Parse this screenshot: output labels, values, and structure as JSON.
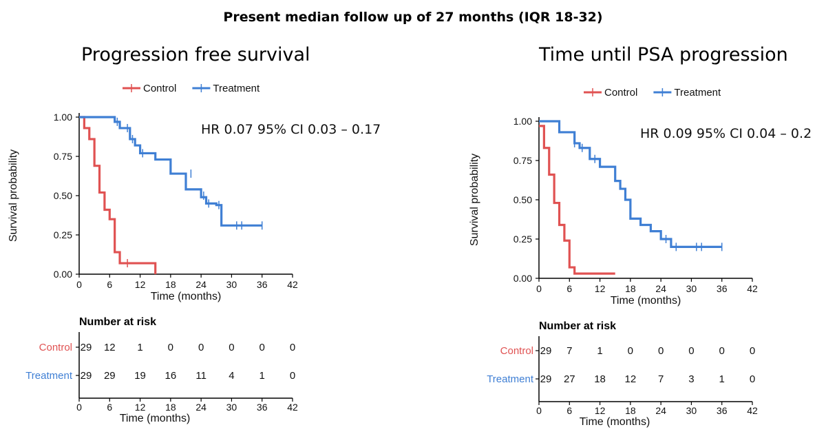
{
  "page_title": "Present median follow up of 27 months (IQR 18-32)",
  "colors": {
    "control": "#e05252",
    "treatment": "#3f7fd4",
    "axis": "#000000"
  },
  "chart_data": [
    {
      "type": "line",
      "title": "Progression free survival",
      "legend": [
        "Control",
        "Treatment"
      ],
      "legend_position": "top",
      "annotation": "HR 0.07 95% CI 0.03 – 0.17",
      "xlabel": "Time (months)",
      "ylabel": "Survival probability",
      "xlim": [
        0,
        42
      ],
      "ylim": [
        0,
        1
      ],
      "x_ticks": [
        "0",
        "6",
        "12",
        "18",
        "24",
        "30",
        "36",
        "42"
      ],
      "y_ticks": [
        "0.00",
        "0.25",
        "0.50",
        "0.75",
        "1.00"
      ],
      "series": [
        {
          "name": "Control",
          "steps": [
            [
              0,
              1.0
            ],
            [
              1,
              0.93
            ],
            [
              2,
              0.86
            ],
            [
              3,
              0.69
            ],
            [
              4,
              0.52
            ],
            [
              5,
              0.41
            ],
            [
              6,
              0.35
            ],
            [
              7,
              0.14
            ],
            [
              8,
              0.07
            ],
            [
              15,
              0.0
            ]
          ],
          "censored": [
            [
              9.5,
              0.07
            ]
          ]
        },
        {
          "name": "Treatment",
          "steps": [
            [
              0,
              1.0
            ],
            [
              7,
              0.97
            ],
            [
              8,
              0.93
            ],
            [
              10,
              0.86
            ],
            [
              11,
              0.82
            ],
            [
              12,
              0.77
            ],
            [
              15,
              0.73
            ],
            [
              18,
              0.64
            ],
            [
              21,
              0.54
            ],
            [
              24,
              0.49
            ],
            [
              25,
              0.45
            ],
            [
              27,
              0.44
            ],
            [
              28,
              0.31
            ]
          ],
          "end": 36,
          "censored": [
            [
              7.5,
              0.97
            ],
            [
              9.5,
              0.93
            ],
            [
              10.5,
              0.86
            ],
            [
              12.5,
              0.77
            ],
            [
              22,
              0.64
            ],
            [
              24.5,
              0.5
            ],
            [
              25.5,
              0.45
            ],
            [
              27.5,
              0.44
            ],
            [
              31,
              0.31
            ],
            [
              32,
              0.31
            ],
            [
              36,
              0.31
            ]
          ]
        }
      ],
      "risk_table": {
        "title": "Number at risk",
        "xlabel": "Time (months)",
        "times": [
          "0",
          "6",
          "12",
          "18",
          "24",
          "30",
          "36",
          "42"
        ],
        "rows": [
          {
            "label": "Control",
            "values": [
              "29",
              "12",
              "1",
              "0",
              "0",
              "0",
              "0",
              "0"
            ]
          },
          {
            "label": "Treatment",
            "values": [
              "29",
              "29",
              "19",
              "16",
              "11",
              "4",
              "1",
              "0"
            ]
          }
        ]
      }
    },
    {
      "type": "line",
      "title": "Time until PSA progression",
      "legend": [
        "Control",
        "Treatment"
      ],
      "legend_position": "top",
      "annotation": "HR 0.09 95% CI 0.04 – 0.2",
      "xlabel": "Time (months)",
      "ylabel": "Survival probability",
      "xlim": [
        0,
        42
      ],
      "ylim": [
        0,
        1
      ],
      "x_ticks": [
        "0",
        "6",
        "12",
        "18",
        "24",
        "30",
        "36",
        "42"
      ],
      "y_ticks": [
        "0.00",
        "0.25",
        "0.50",
        "0.75",
        "1.00"
      ],
      "series": [
        {
          "name": "Control",
          "steps": [
            [
              0,
              0.97
            ],
            [
              1,
              0.83
            ],
            [
              2,
              0.66
            ],
            [
              3,
              0.48
            ],
            [
              4,
              0.34
            ],
            [
              5,
              0.24
            ],
            [
              6,
              0.07
            ],
            [
              7,
              0.03
            ],
            [
              15,
              0.03
            ]
          ],
          "censored": []
        },
        {
          "name": "Treatment",
          "steps": [
            [
              0,
              1.0
            ],
            [
              4,
              0.93
            ],
            [
              7,
              0.86
            ],
            [
              8,
              0.83
            ],
            [
              10,
              0.76
            ],
            [
              12,
              0.71
            ],
            [
              15,
              0.62
            ],
            [
              16,
              0.57
            ],
            [
              17,
              0.5
            ],
            [
              18,
              0.38
            ],
            [
              20,
              0.34
            ],
            [
              22,
              0.3
            ],
            [
              24,
              0.25
            ],
            [
              26,
              0.2
            ]
          ],
          "end": 36,
          "censored": [
            [
              7,
              0.86
            ],
            [
              8.5,
              0.83
            ],
            [
              11,
              0.76
            ],
            [
              25,
              0.25
            ],
            [
              27,
              0.2
            ],
            [
              31,
              0.2
            ],
            [
              32,
              0.2
            ],
            [
              36,
              0.2
            ]
          ]
        }
      ],
      "risk_table": {
        "title": "Number at risk",
        "xlabel": "Time (months)",
        "times": [
          "0",
          "6",
          "12",
          "18",
          "24",
          "30",
          "36",
          "42"
        ],
        "rows": [
          {
            "label": "Control",
            "values": [
              "29",
              "7",
              "1",
              "0",
              "0",
              "0",
              "0",
              "0"
            ]
          },
          {
            "label": "Treatment",
            "values": [
              "29",
              "27",
              "18",
              "12",
              "7",
              "3",
              "1",
              "0"
            ]
          }
        ]
      }
    }
  ]
}
